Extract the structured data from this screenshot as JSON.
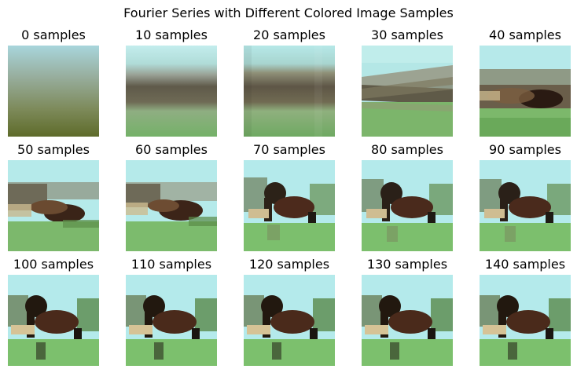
{
  "figure": {
    "title": "Fourier Series with Different Colored Image Samples"
  },
  "panels": [
    {
      "label": "0 samples",
      "samples": 0
    },
    {
      "label": "10 samples",
      "samples": 10
    },
    {
      "label": "20 samples",
      "samples": 20
    },
    {
      "label": "30 samples",
      "samples": 30
    },
    {
      "label": "40 samples",
      "samples": 40
    },
    {
      "label": "50 samples",
      "samples": 50
    },
    {
      "label": "60 samples",
      "samples": 60
    },
    {
      "label": "70 samples",
      "samples": 70
    },
    {
      "label": "80 samples",
      "samples": 80
    },
    {
      "label": "90 samples",
      "samples": 90
    },
    {
      "label": "100 samples",
      "samples": 100
    },
    {
      "label": "110 samples",
      "samples": 110
    },
    {
      "label": "120 samples",
      "samples": 120
    },
    {
      "label": "130 samples",
      "samples": 130
    },
    {
      "label": "140 samples",
      "samples": 140
    }
  ],
  "colors": {
    "sky": "#b3ebee",
    "sky_pale": "#d6f3f2",
    "horizon_dark": "#5c5a48",
    "horizon_mid": "#8a8672",
    "grass": "#7dbb6d",
    "grass_dark": "#5a8f4d",
    "grass_deep": "#5e6b2a",
    "horse_brown": "#5a3424",
    "horse_dark": "#1e1a14",
    "horse_light": "#d8c49a"
  }
}
